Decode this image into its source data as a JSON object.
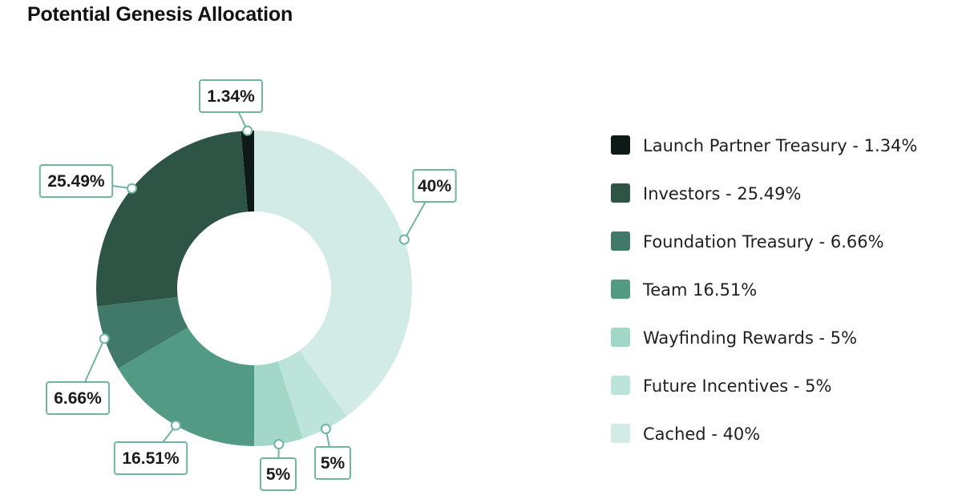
{
  "chart_data": {
    "type": "pie",
    "title": "Potential Genesis Allocation",
    "donut": true,
    "legend_position": "right",
    "slices": [
      {
        "label": "Launch Partner Treasury",
        "value": 1.34,
        "value_label": "1.34%",
        "legend": "Launch Partner Treasury - 1.34%",
        "color": "#0d1a17"
      },
      {
        "label": "Investors",
        "value": 25.49,
        "value_label": "25.49%",
        "legend": "Investors - 25.49%",
        "color": "#2e5446"
      },
      {
        "label": "Foundation Treasury",
        "value": 6.66,
        "value_label": "6.66%",
        "legend": "Foundation Treasury - 6.66%",
        "color": "#40796a"
      },
      {
        "label": "Team",
        "value": 16.51,
        "value_label": "16.51%",
        "legend": "Team 16.51%",
        "color": "#539a84"
      },
      {
        "label": "Wayfinding Rewards",
        "value": 5,
        "value_label": "5%",
        "legend": "Wayfinding Rewards - 5%",
        "color": "#a2d6c7"
      },
      {
        "label": "Future Incentives",
        "value": 5,
        "value_label": "5%",
        "legend": "Future Incentives - 5%",
        "color": "#bde4da"
      },
      {
        "label": "Cached",
        "value": 40,
        "value_label": "40%",
        "legend": "Cached - 40%",
        "color": "#d3ebe6"
      }
    ]
  },
  "colors": {
    "callout_border": "#6fb5a0"
  }
}
